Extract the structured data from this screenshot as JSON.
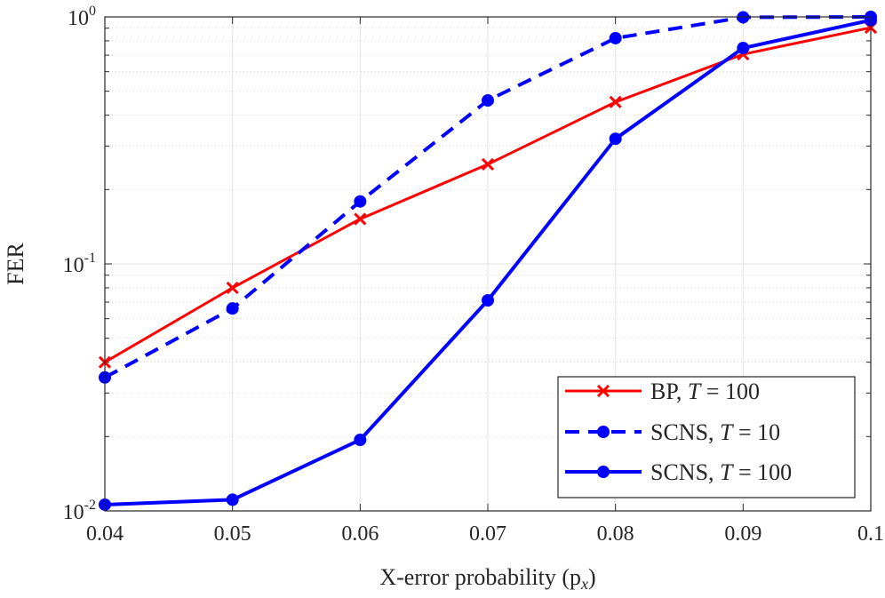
{
  "chart_data": {
    "type": "line",
    "xlabel": "X-error probability (p",
    "xlabel_sub": "x",
    "xlabel_close": ")",
    "ylabel": "FER",
    "xlim": [
      0.04,
      0.1
    ],
    "ylim": [
      0.01,
      1
    ],
    "yscale": "log",
    "grid": true,
    "legend_position": "bottom-right",
    "x_ticks": [
      "0.04",
      "0.05",
      "0.06",
      "0.07",
      "0.08",
      "0.09",
      "0.1"
    ],
    "y_ticks": [
      {
        "base": "10",
        "exp": "-2",
        "value": 0.01
      },
      {
        "base": "10",
        "exp": "-1",
        "value": 0.1
      },
      {
        "base": "10",
        "exp": "0",
        "value": 1
      }
    ],
    "x": [
      0.04,
      0.05,
      0.06,
      0.07,
      0.08,
      0.09,
      0.1
    ],
    "series": [
      {
        "name": "BP, T = 100",
        "name_prefix": "BP, ",
        "name_var": "T",
        "name_suffix": " = 100",
        "color": "#ff0000",
        "style": "solid",
        "marker": "x",
        "values": [
          0.04,
          0.08,
          0.152,
          0.253,
          0.452,
          0.706,
          0.905
        ]
      },
      {
        "name": "SCNS, T = 10",
        "name_prefix": "SCNS, ",
        "name_var": "T",
        "name_suffix": " = 10",
        "color": "#0000ff",
        "style": "dashed",
        "marker": "circle",
        "values": [
          0.0347,
          0.066,
          0.179,
          0.459,
          0.82,
          0.996,
          1.0
        ]
      },
      {
        "name": "SCNS, T = 100",
        "name_prefix": "SCNS, ",
        "name_var": "T",
        "name_suffix": " = 100",
        "color": "#0000ff",
        "style": "solid",
        "marker": "circle",
        "values": [
          0.0106,
          0.0111,
          0.0194,
          0.0712,
          0.321,
          0.748,
          0.97
        ]
      }
    ]
  }
}
